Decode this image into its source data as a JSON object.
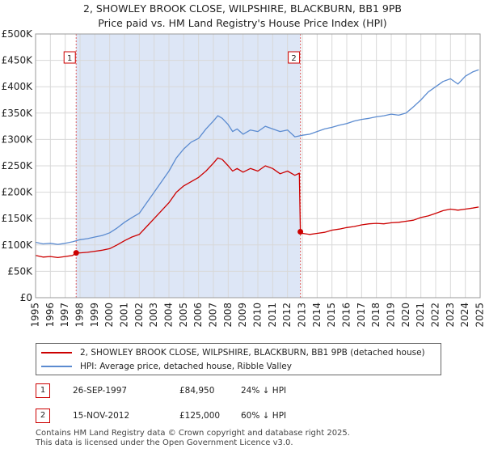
{
  "title_line1": "2, SHOWLEY BROOK CLOSE, WILPSHIRE, BLACKBURN, BB1 9PB",
  "title_line2": "Price paid vs. HM Land Registry's House Price Index (HPI)",
  "colors": {
    "property": "#cc0000",
    "hpi": "#5b8bd0",
    "shade": "#dde6f6",
    "marker_border": "#cc0000"
  },
  "chart_data": {
    "type": "line",
    "xlim": [
      1995,
      2025
    ],
    "ylim": [
      0,
      500000
    ],
    "x_ticks": [
      "1995",
      "1996",
      "1997",
      "1998",
      "1999",
      "2000",
      "2001",
      "2002",
      "2003",
      "2004",
      "2005",
      "2006",
      "2007",
      "2008",
      "2009",
      "2010",
      "2011",
      "2012",
      "2013",
      "2014",
      "2015",
      "2016",
      "2017",
      "2018",
      "2019",
      "2020",
      "2021",
      "2022",
      "2023",
      "2024",
      "2025"
    ],
    "y_ticks": [
      "£0",
      "£50K",
      "£100K",
      "£150K",
      "£200K",
      "£250K",
      "£300K",
      "£350K",
      "£400K",
      "£450K",
      "£500K"
    ],
    "shaded_range": [
      1997.74,
      2012.87
    ],
    "series": [
      {
        "name": "2, SHOWLEY BROOK CLOSE, WILPSHIRE, BLACKBURN, BB1 9PB (detached house)",
        "x": [
          1995.0,
          1995.5,
          1996.0,
          1996.5,
          1997.0,
          1997.5,
          1997.74,
          1998.0,
          1998.5,
          1999.0,
          1999.5,
          2000.0,
          2000.5,
          2001.0,
          2001.5,
          2002.0,
          2002.5,
          2003.0,
          2003.5,
          2004.0,
          2004.5,
          2005.0,
          2005.5,
          2006.0,
          2006.5,
          2007.0,
          2007.3,
          2007.6,
          2008.0,
          2008.3,
          2008.6,
          2009.0,
          2009.5,
          2010.0,
          2010.5,
          2011.0,
          2011.5,
          2012.0,
          2012.5,
          2012.8,
          2012.87,
          2013.0,
          2013.5,
          2014.0,
          2014.5,
          2015.0,
          2015.5,
          2016.0,
          2016.5,
          2017.0,
          2017.5,
          2018.0,
          2018.5,
          2019.0,
          2019.5,
          2020.0,
          2020.5,
          2021.0,
          2021.5,
          2022.0,
          2022.5,
          2023.0,
          2023.5,
          2024.0,
          2024.5,
          2024.9
        ],
        "y": [
          80000,
          77000,
          78000,
          76000,
          78000,
          80000,
          84950,
          85000,
          86000,
          88000,
          90000,
          93000,
          100000,
          108000,
          115000,
          120000,
          135000,
          150000,
          165000,
          180000,
          200000,
          212000,
          220000,
          228000,
          240000,
          255000,
          265000,
          262000,
          250000,
          240000,
          245000,
          238000,
          245000,
          240000,
          250000,
          245000,
          235000,
          240000,
          232000,
          236000,
          125000,
          122000,
          120000,
          122000,
          124000,
          128000,
          130000,
          133000,
          135000,
          138000,
          140000,
          141000,
          140000,
          142000,
          143000,
          145000,
          147000,
          152000,
          155000,
          160000,
          165000,
          168000,
          166000,
          168000,
          170000,
          172000
        ]
      },
      {
        "name": "HPI: Average price, detached house, Ribble Valley",
        "x": [
          1995.0,
          1995.5,
          1996.0,
          1996.5,
          1997.0,
          1997.5,
          1998.0,
          1998.5,
          1999.0,
          1999.5,
          2000.0,
          2000.5,
          2001.0,
          2001.5,
          2002.0,
          2002.5,
          2003.0,
          2003.5,
          2004.0,
          2004.5,
          2005.0,
          2005.5,
          2006.0,
          2006.5,
          2007.0,
          2007.3,
          2007.6,
          2008.0,
          2008.3,
          2008.6,
          2009.0,
          2009.5,
          2010.0,
          2010.5,
          2011.0,
          2011.5,
          2012.0,
          2012.5,
          2013.0,
          2013.5,
          2014.0,
          2014.5,
          2015.0,
          2015.5,
          2016.0,
          2016.5,
          2017.0,
          2017.5,
          2018.0,
          2018.5,
          2019.0,
          2019.5,
          2020.0,
          2020.5,
          2021.0,
          2021.5,
          2022.0,
          2022.5,
          2023.0,
          2023.5,
          2024.0,
          2024.5,
          2024.9
        ],
        "y": [
          105000,
          102000,
          103000,
          101000,
          103000,
          106000,
          110000,
          112000,
          115000,
          118000,
          123000,
          132000,
          143000,
          152000,
          160000,
          180000,
          200000,
          220000,
          240000,
          265000,
          282000,
          295000,
          302000,
          320000,
          335000,
          345000,
          340000,
          328000,
          315000,
          320000,
          310000,
          318000,
          315000,
          325000,
          320000,
          315000,
          318000,
          305000,
          308000,
          310000,
          315000,
          320000,
          323000,
          327000,
          330000,
          335000,
          338000,
          340000,
          343000,
          345000,
          348000,
          346000,
          350000,
          362000,
          375000,
          390000,
          400000,
          410000,
          415000,
          405000,
          420000,
          428000,
          432000
        ]
      }
    ],
    "transactions": [
      {
        "badge": "1",
        "date": "26-SEP-1997",
        "x": 1997.74,
        "price_value": 84950,
        "price": "£84,950",
        "hpi_delta": "24% ↓ HPI"
      },
      {
        "badge": "2",
        "date": "15-NOV-2012",
        "x": 2012.87,
        "price_value": 125000,
        "price": "£125,000",
        "hpi_delta": "60% ↓ HPI"
      }
    ]
  },
  "legend": {
    "property_label": "2, SHOWLEY BROOK CLOSE, WILPSHIRE, BLACKBURN, BB1 9PB (detached house)",
    "hpi_label": "HPI: Average price, detached house, Ribble Valley"
  },
  "footer": {
    "line1": "Contains HM Land Registry data © Crown copyright and database right 2025.",
    "line2": "This data is licensed under the Open Government Licence v3.0."
  }
}
